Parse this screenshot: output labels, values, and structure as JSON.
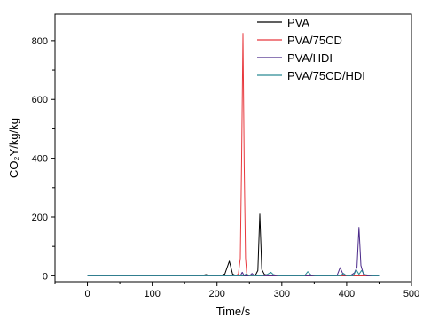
{
  "chart_data": {
    "type": "line",
    "title": "",
    "xlabel": "Time/s",
    "ylabel": "CO₂Y/kg/kg",
    "xlim": [
      -50,
      500
    ],
    "ylim": [
      -20,
      890
    ],
    "xticks": [
      0,
      100,
      200,
      300,
      400,
      500
    ],
    "yticks": [
      0,
      200,
      400,
      600,
      800
    ],
    "grid": false,
    "legend": "top-right",
    "series": [
      {
        "name": "PVA",
        "color": "#000000",
        "points": [
          [
            0,
            0
          ],
          [
            30,
            0
          ],
          [
            60,
            0
          ],
          [
            100,
            0
          ],
          [
            140,
            0
          ],
          [
            175,
            0
          ],
          [
            183,
            4
          ],
          [
            190,
            0
          ],
          [
            205,
            0
          ],
          [
            212,
            6
          ],
          [
            219,
            50
          ],
          [
            224,
            6
          ],
          [
            230,
            0
          ],
          [
            255,
            0
          ],
          [
            260,
            5
          ],
          [
            263,
            18
          ],
          [
            266,
            210
          ],
          [
            269,
            22
          ],
          [
            273,
            5
          ],
          [
            280,
            0
          ],
          [
            300,
            0
          ],
          [
            350,
            0
          ],
          [
            400,
            0
          ],
          [
            450,
            0
          ]
        ]
      },
      {
        "name": "PVA/75CD",
        "color": "#e8383d",
        "points": [
          [
            0,
            0
          ],
          [
            50,
            0
          ],
          [
            100,
            0
          ],
          [
            150,
            0
          ],
          [
            200,
            0
          ],
          [
            228,
            0
          ],
          [
            233,
            6
          ],
          [
            236,
            60
          ],
          [
            238,
            400
          ],
          [
            240,
            825
          ],
          [
            242,
            380
          ],
          [
            244,
            60
          ],
          [
            246,
            6
          ],
          [
            250,
            0
          ],
          [
            300,
            0
          ],
          [
            350,
            0
          ],
          [
            400,
            0
          ],
          [
            450,
            0
          ]
        ]
      },
      {
        "name": "PVA/HDI",
        "color": "#4b2a8a",
        "points": [
          [
            0,
            0
          ],
          [
            100,
            0
          ],
          [
            200,
            0
          ],
          [
            236,
            0
          ],
          [
            239,
            12
          ],
          [
            242,
            0
          ],
          [
            250,
            0
          ],
          [
            254,
            8
          ],
          [
            258,
            0
          ],
          [
            300,
            0
          ],
          [
            350,
            0
          ],
          [
            385,
            0
          ],
          [
            390,
            28
          ],
          [
            395,
            2
          ],
          [
            405,
            0
          ],
          [
            412,
            10
          ],
          [
            416,
            30
          ],
          [
            419,
            165
          ],
          [
            422,
            35
          ],
          [
            426,
            5
          ],
          [
            432,
            0
          ],
          [
            450,
            0
          ]
        ]
      },
      {
        "name": "PVA/75CD/HDI",
        "color": "#2a8a93",
        "points": [
          [
            0,
            0
          ],
          [
            100,
            0
          ],
          [
            200,
            0
          ],
          [
            240,
            0
          ],
          [
            245,
            6
          ],
          [
            250,
            0
          ],
          [
            270,
            0
          ],
          [
            278,
            5
          ],
          [
            283,
            12
          ],
          [
            287,
            4
          ],
          [
            295,
            0
          ],
          [
            335,
            0
          ],
          [
            340,
            14
          ],
          [
            345,
            3
          ],
          [
            352,
            0
          ],
          [
            390,
            0
          ],
          [
            395,
            8
          ],
          [
            400,
            0
          ],
          [
            410,
            0
          ],
          [
            415,
            20
          ],
          [
            419,
            5
          ],
          [
            423,
            18
          ],
          [
            428,
            4
          ],
          [
            440,
            0
          ],
          [
            450,
            0
          ]
        ]
      }
    ]
  }
}
